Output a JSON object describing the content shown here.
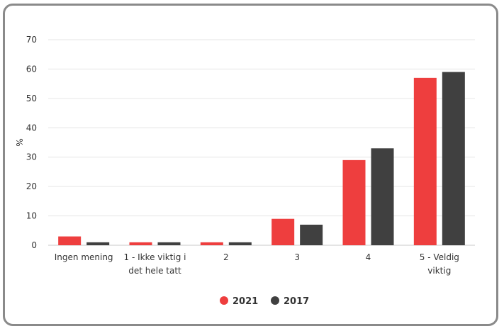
{
  "chart_data": {
    "type": "bar",
    "ylabel": "%",
    "ylim": [
      0,
      70
    ],
    "yticks": [
      0,
      10,
      20,
      30,
      40,
      50,
      60,
      70
    ],
    "grid": true,
    "legend_position": "bottom-center",
    "categories": [
      [
        "Ingen mening"
      ],
      [
        "1 - Ikke viktig i",
        "det hele tatt"
      ],
      [
        "2"
      ],
      [
        "3"
      ],
      [
        "4"
      ],
      [
        "5 - Veldig",
        "viktig"
      ]
    ],
    "series": [
      {
        "name": "2021",
        "color": "#ee3e3e",
        "values": [
          3,
          1,
          1,
          9,
          29,
          57
        ]
      },
      {
        "name": "2017",
        "color": "#404040",
        "values": [
          1,
          1,
          1,
          7,
          33,
          59
        ]
      }
    ]
  }
}
